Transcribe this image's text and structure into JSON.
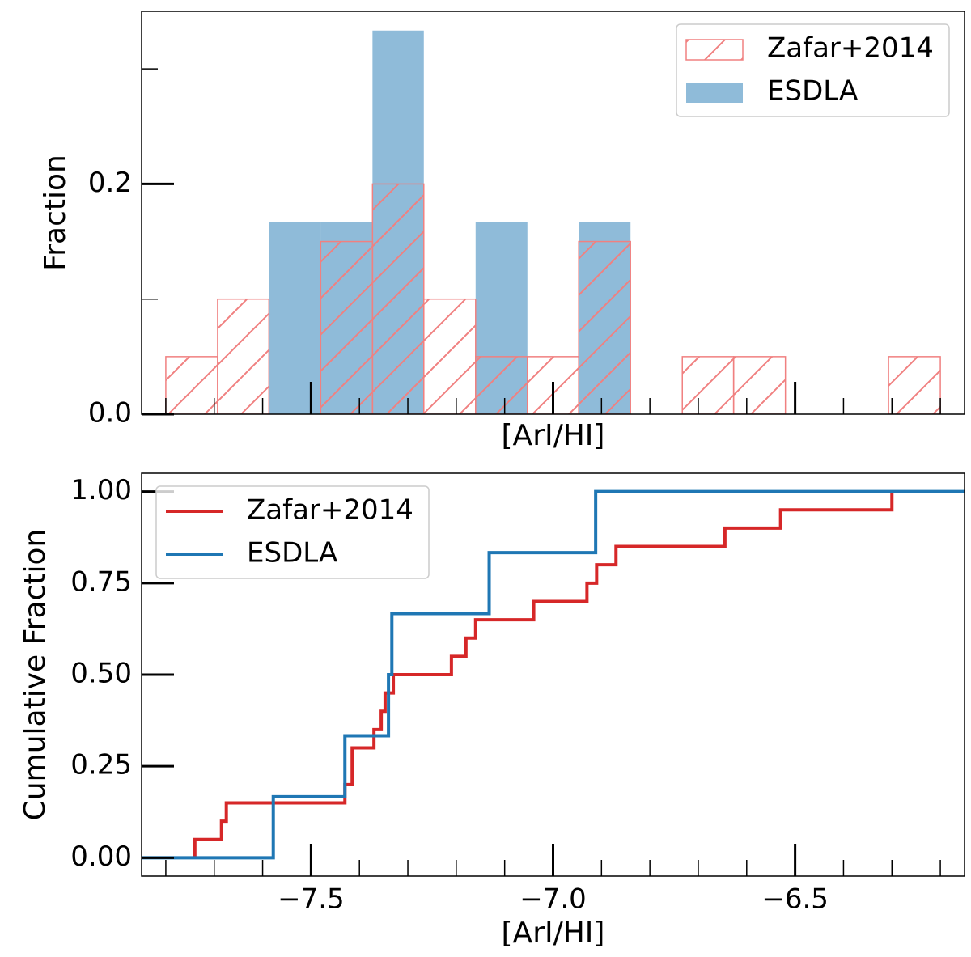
{
  "chart_data": [
    {
      "type": "histogram",
      "xlabel": "[ArI/HI]",
      "ylabel": "Fraction",
      "bins": [
        -7.8,
        -7.693,
        -7.587,
        -7.48,
        -7.373,
        -7.267,
        -7.16,
        -7.053,
        -6.947,
        -6.84,
        -6.733,
        -6.627,
        -6.52,
        -6.413,
        -6.307,
        -6.2
      ],
      "series": [
        {
          "name": "Zafar+2014",
          "color": "#f08080",
          "hatch": "/",
          "values": [
            0.05,
            0.1,
            0,
            0.15,
            0.2,
            0.1,
            0.05,
            0.05,
            0.15,
            0,
            0.05,
            0.05,
            0,
            0,
            0.05
          ]
        },
        {
          "name": "ESDLA",
          "color": "#1f77b4",
          "alpha": 0.5,
          "values": [
            0,
            0,
            0.1667,
            0.1667,
            0.3333,
            0,
            0.1667,
            0,
            0.1667,
            0,
            0,
            0,
            0,
            0,
            0
          ]
        }
      ],
      "xlim": [
        -7.85,
        -6.15
      ],
      "ylim": [
        0,
        0.35
      ],
      "xticks": [
        -7.5,
        -7,
        -6.5
      ],
      "show_xtick_labels": false,
      "xminor": [
        -7.8,
        -7.7,
        -7.6,
        -7.4,
        -7.3,
        -7.2,
        -7.1,
        -6.9,
        -6.8,
        -6.7,
        -6.6,
        -6.4,
        -6.3,
        -6.2
      ],
      "yticks": [
        {
          "value": 0,
          "label": "0.0"
        },
        0.2
      ],
      "yminor": [
        0.1,
        0.3
      ],
      "legend": "upper right"
    },
    {
      "type": "step",
      "xlabel": "[ArI/HI]",
      "ylabel": "Cumulative Fraction",
      "series": [
        {
          "name": "Zafar+2014",
          "color": "#d62728",
          "x": [
            -7.74,
            -7.74,
            -7.685,
            -7.675,
            -7.43,
            -7.415,
            -7.415,
            -7.37,
            -7.355,
            -7.347,
            -7.33,
            -7.21,
            -7.18,
            -7.16,
            -7.04,
            -6.93,
            -6.91,
            -6.87,
            -6.645,
            -6.53,
            -6.3
          ],
          "values": [
            0,
            0.05,
            0.1,
            0.15,
            0.2,
            0.25,
            0.3,
            0.35,
            0.4,
            0.45,
            0.5,
            0.55,
            0.6,
            0.65,
            0.7,
            0.75,
            0.8,
            0.85,
            0.9,
            0.95,
            1.0
          ]
        },
        {
          "name": "ESDLA",
          "color": "#1f77b4",
          "x": [
            -7.85,
            -7.578,
            -7.43,
            -7.34,
            -7.333,
            -7.132,
            -6.912,
            -6.15
          ],
          "values": [
            0,
            0.1667,
            0.3333,
            0.5,
            0.6667,
            0.8333,
            1.0,
            1.0
          ]
        }
      ],
      "xlim": [
        -7.85,
        -6.15
      ],
      "ylim": [
        -0.05,
        1.05
      ],
      "xticks": [
        {
          "value": -7.5,
          "label": "−7.5"
        },
        {
          "value": -7,
          "label": "−7.0"
        },
        {
          "value": -6.5,
          "label": "−6.5"
        }
      ],
      "show_xtick_labels": true,
      "xminor": [
        -7.8,
        -7.7,
        -7.6,
        -7.4,
        -7.3,
        -7.2,
        -7.1,
        -6.9,
        -6.8,
        -6.7,
        -6.6,
        -6.4,
        -6.3,
        -6.2
      ],
      "yticks": [
        {
          "value": 0,
          "label": "0.00"
        },
        0.25,
        {
          "value": 0.5,
          "label": "0.50"
        },
        0.75,
        {
          "value": 1,
          "label": "1.00"
        }
      ],
      "yminor": [],
      "legend": "upper left"
    }
  ]
}
